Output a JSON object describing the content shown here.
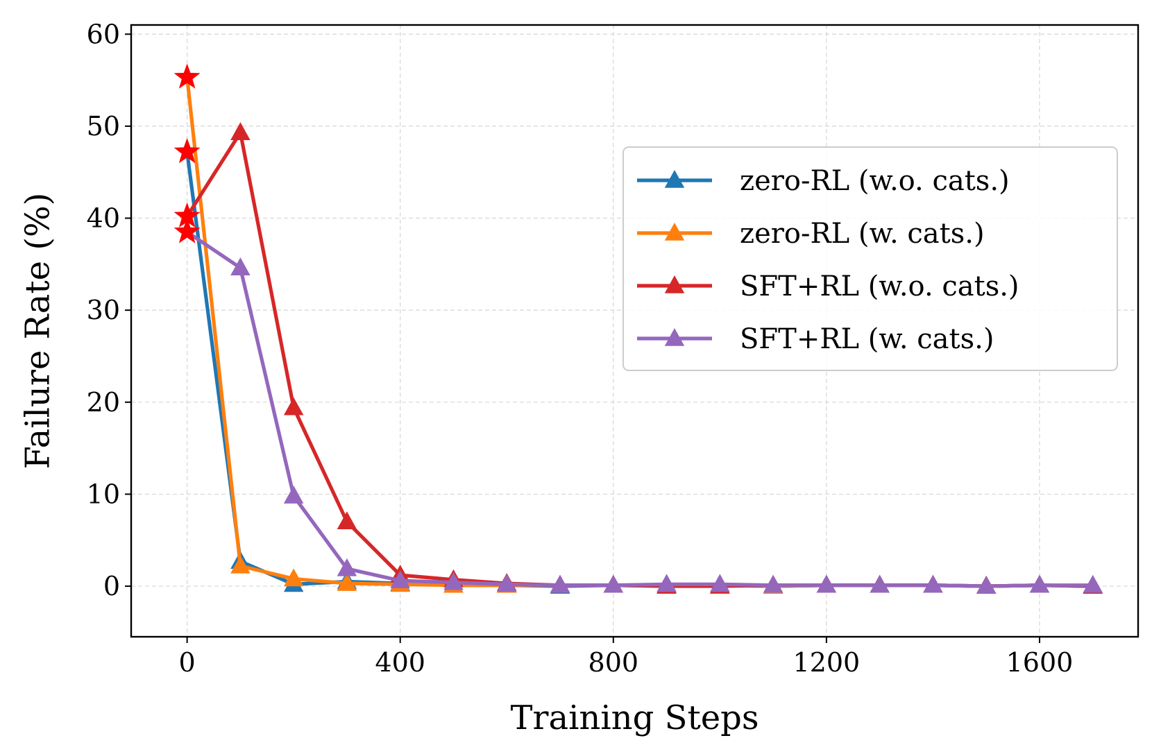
{
  "chart_data": {
    "type": "line",
    "xlabel": "Training Steps",
    "ylabel": "Failure Rate (%)",
    "xlim": [
      -105,
      1785
    ],
    "ylim": [
      -5.5,
      61
    ],
    "xticks": [
      0,
      400,
      800,
      1200,
      1600
    ],
    "yticks": [
      0,
      10,
      20,
      30,
      40,
      50,
      60
    ],
    "grid": true,
    "legend_position": "center-right",
    "initial_marker": "star",
    "initial_marker_color": "#ff0000",
    "series": [
      {
        "name": "zero-RL (w.o. cats.)",
        "color": "#1f77b4",
        "marker": "triangle",
        "x": [
          0,
          100,
          200,
          300,
          400,
          500,
          600,
          700,
          800,
          900,
          1000,
          1100,
          1200,
          1300,
          1400,
          1500,
          1600,
          1700
        ],
        "y": [
          47.2,
          2.7,
          0.2,
          0.5,
          0.3,
          0.1,
          0.1,
          0.0,
          0.1,
          0.1,
          0.1,
          0.0,
          0.1,
          0.1,
          0.1,
          0.0,
          0.1,
          0.0
        ]
      },
      {
        "name": "zero-RL (w. cats.)",
        "color": "#ff7f0e",
        "marker": "triangle",
        "x": [
          0,
          100,
          200,
          300,
          400,
          500,
          600,
          700,
          800,
          900,
          1000,
          1100,
          1200,
          1300,
          1400,
          1500,
          1600,
          1700
        ],
        "y": [
          55.3,
          2.2,
          0.8,
          0.3,
          0.2,
          0.1,
          0.1,
          0.1,
          0.1,
          0.0,
          0.1,
          0.0,
          0.1,
          0.1,
          0.1,
          0.0,
          0.1,
          0.0
        ]
      },
      {
        "name": "SFT+RL (w.o. cats.)",
        "color": "#d62728",
        "marker": "triangle",
        "x": [
          0,
          100,
          200,
          300,
          400,
          500,
          600,
          700,
          800,
          900,
          1000,
          1100,
          1200,
          1300,
          1400,
          1500,
          1600,
          1700
        ],
        "y": [
          40.2,
          49.3,
          19.4,
          7.0,
          1.2,
          0.7,
          0.3,
          0.1,
          0.1,
          0.0,
          0.0,
          0.1,
          0.1,
          0.1,
          0.1,
          0.0,
          0.1,
          0.0
        ]
      },
      {
        "name": "SFT+RL (w. cats.)",
        "color": "#9467bd",
        "marker": "triangle",
        "x": [
          0,
          100,
          200,
          300,
          400,
          500,
          600,
          700,
          800,
          900,
          1000,
          1100,
          1200,
          1300,
          1400,
          1500,
          1600,
          1700
        ],
        "y": [
          38.5,
          34.6,
          9.8,
          1.9,
          0.6,
          0.4,
          0.2,
          0.1,
          0.1,
          0.2,
          0.2,
          0.1,
          0.1,
          0.1,
          0.1,
          0.0,
          0.1,
          0.1
        ]
      }
    ]
  }
}
